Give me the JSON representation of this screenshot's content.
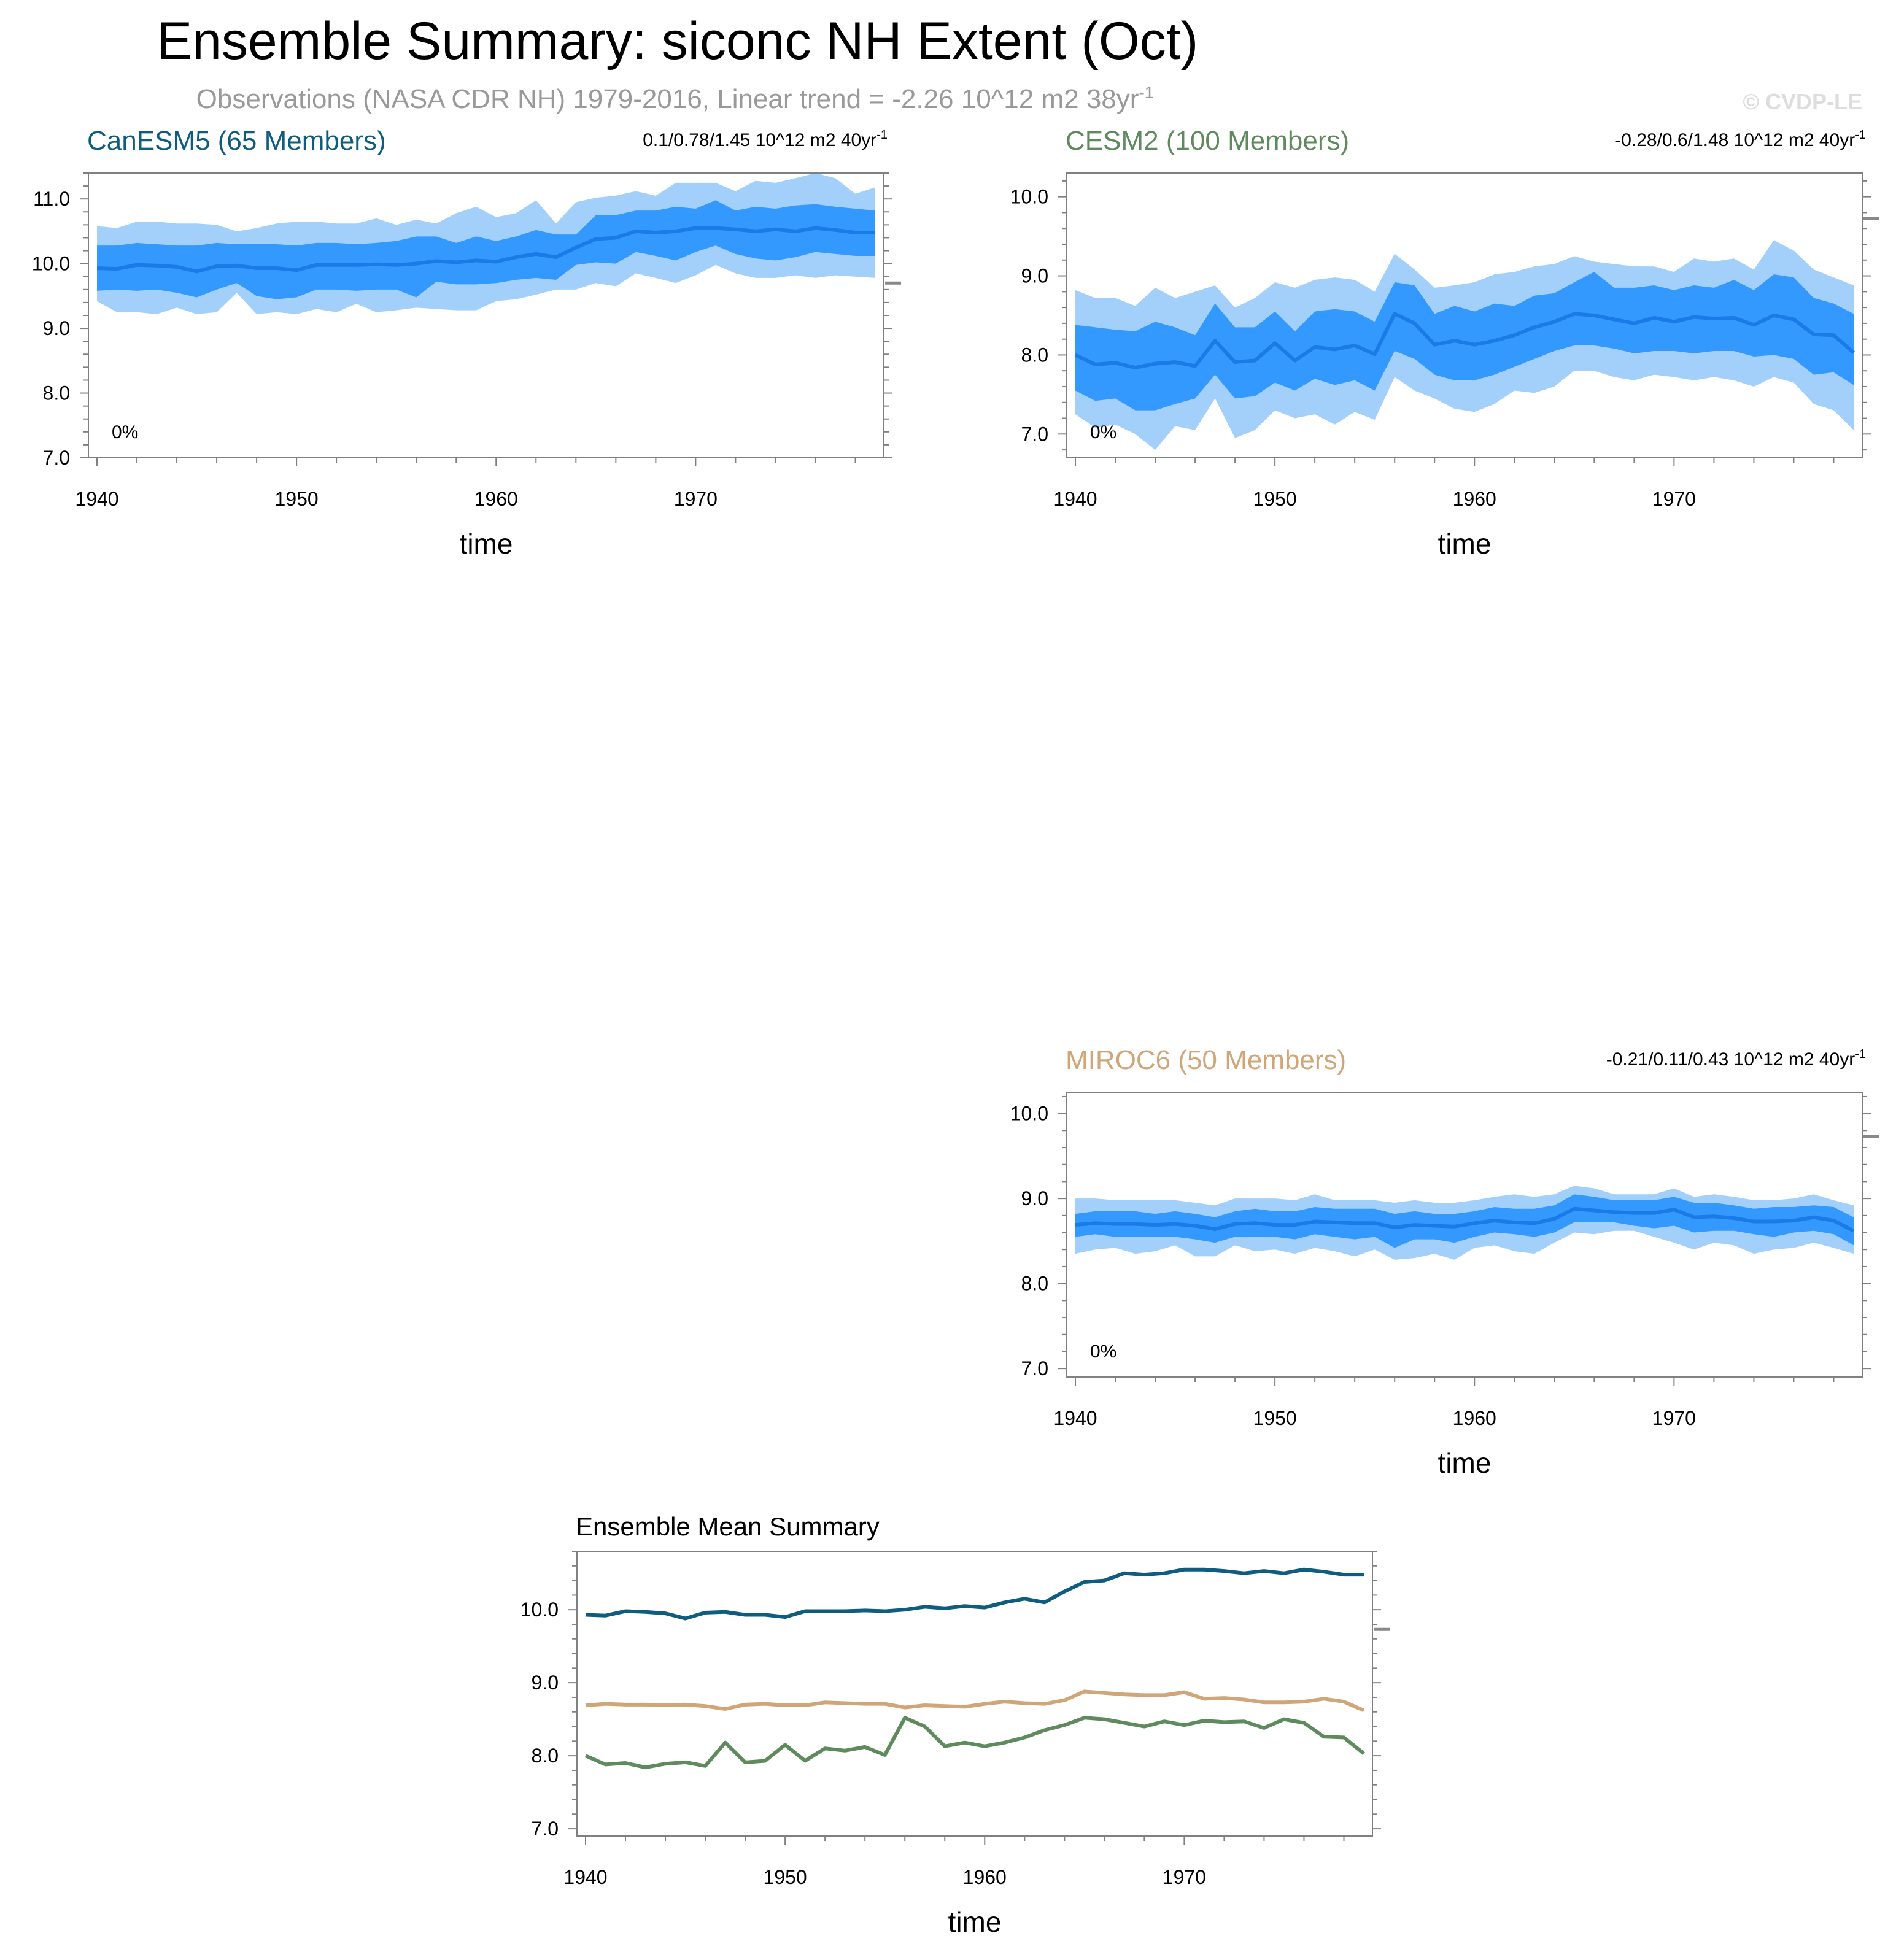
{
  "figure": {
    "title": "Ensemble Summary: siconc NH Extent (Oct)",
    "subtitle": "Observations (NASA CDR NH) 1979-2016, Linear trend = -2.26 10^12 m2 38yr",
    "subtitle_sup": "-1",
    "copyright": "© CVDP-LE"
  },
  "colors": {
    "band_outer": "#a3d0fb",
    "band_inner": "#3399ff",
    "mean_line": "#1a7ae8",
    "obs_marker": "#888888",
    "CanESM5": "#0e5d80",
    "CESM2": "#5e8a5e",
    "MIROC6": "#d0a678"
  },
  "chart_data": [
    {
      "type": "area",
      "title": "CanESM5 (65 Members)",
      "right_title": "0.1/0.78/1.45 10^12 m2 40yr",
      "right_sup": "-1",
      "percent_label": "0%",
      "xlabel": "time",
      "ylabel": "",
      "xlim": [
        1940,
        1979
      ],
      "ylim": [
        7.0,
        11.4
      ],
      "xticks": [
        1940,
        1950,
        1960,
        1970
      ],
      "yticks": [
        7.0,
        8.0,
        9.0,
        10.0,
        11.0
      ],
      "ytick_labels": [
        "7.0",
        "8.0",
        "9.0",
        "10.0",
        "11.0"
      ],
      "obs_marker": 9.7,
      "x": [
        1940,
        1941,
        1942,
        1943,
        1944,
        1945,
        1946,
        1947,
        1948,
        1949,
        1950,
        1951,
        1952,
        1953,
        1954,
        1955,
        1956,
        1957,
        1958,
        1959,
        1960,
        1961,
        1962,
        1963,
        1964,
        1965,
        1966,
        1967,
        1968,
        1969,
        1970,
        1971,
        1972,
        1973,
        1974,
        1975,
        1976,
        1977,
        1978,
        1979
      ],
      "series": [
        {
          "name": "mean",
          "values": [
            9.93,
            9.92,
            9.98,
            9.97,
            9.95,
            9.88,
            9.96,
            9.97,
            9.93,
            9.93,
            9.9,
            9.98,
            9.98,
            9.98,
            9.99,
            9.98,
            10.0,
            10.04,
            10.02,
            10.05,
            10.03,
            10.1,
            10.15,
            10.1,
            10.25,
            10.38,
            10.4,
            10.5,
            10.48,
            10.5,
            10.55,
            10.55,
            10.53,
            10.5,
            10.53,
            10.5,
            10.55,
            10.52,
            10.48,
            10.48
          ]
        },
        {
          "name": "p10",
          "values": [
            9.58,
            9.6,
            9.58,
            9.6,
            9.55,
            9.48,
            9.6,
            9.7,
            9.5,
            9.45,
            9.48,
            9.6,
            9.6,
            9.58,
            9.6,
            9.6,
            9.48,
            9.72,
            9.68,
            9.68,
            9.7,
            9.75,
            9.78,
            9.75,
            9.98,
            10.02,
            10.0,
            10.18,
            10.12,
            10.05,
            10.18,
            10.28,
            10.15,
            10.08,
            10.05,
            10.1,
            10.18,
            10.15,
            10.12,
            10.12
          ]
        },
        {
          "name": "p90",
          "values": [
            10.28,
            10.28,
            10.32,
            10.3,
            10.28,
            10.28,
            10.32,
            10.3,
            10.3,
            10.3,
            10.28,
            10.32,
            10.32,
            10.3,
            10.32,
            10.35,
            10.42,
            10.42,
            10.32,
            10.42,
            10.35,
            10.42,
            10.52,
            10.45,
            10.45,
            10.75,
            10.75,
            10.82,
            10.82,
            10.88,
            10.85,
            10.98,
            10.82,
            10.88,
            10.85,
            10.9,
            10.92,
            10.88,
            10.85,
            10.82
          ]
        },
        {
          "name": "min",
          "values": [
            9.42,
            9.25,
            9.25,
            9.22,
            9.32,
            9.22,
            9.25,
            9.55,
            9.22,
            9.25,
            9.22,
            9.3,
            9.25,
            9.38,
            9.25,
            9.28,
            9.32,
            9.3,
            9.28,
            9.28,
            9.42,
            9.45,
            9.52,
            9.6,
            9.6,
            9.7,
            9.65,
            9.85,
            9.78,
            9.7,
            9.82,
            9.98,
            9.85,
            9.78,
            9.78,
            9.82,
            9.78,
            9.82,
            9.8,
            9.78
          ]
        },
        {
          "name": "max",
          "values": [
            10.58,
            10.55,
            10.65,
            10.65,
            10.62,
            10.62,
            10.6,
            10.5,
            10.55,
            10.62,
            10.65,
            10.65,
            10.62,
            10.62,
            10.7,
            10.6,
            10.68,
            10.62,
            10.78,
            10.88,
            10.72,
            10.78,
            10.98,
            10.62,
            10.95,
            11.02,
            11.05,
            11.12,
            11.05,
            11.25,
            11.25,
            11.25,
            11.12,
            11.28,
            11.25,
            11.32,
            11.4,
            11.32,
            11.08,
            11.18
          ]
        }
      ]
    },
    {
      "type": "area",
      "title": "CESM2 (100 Members)",
      "right_title": "-0.28/0.6/1.48 10^12 m2 40yr",
      "right_sup": "-1",
      "percent_label": "0%",
      "xlabel": "time",
      "ylabel": "",
      "xlim": [
        1940,
        1979
      ],
      "ylim": [
        6.7,
        10.3
      ],
      "xticks": [
        1940,
        1950,
        1960,
        1970
      ],
      "yticks": [
        7.0,
        8.0,
        9.0,
        10.0
      ],
      "ytick_labels": [
        "7.0",
        "8.0",
        "9.0",
        "10.0"
      ],
      "obs_marker": 9.73,
      "x": [
        1940,
        1941,
        1942,
        1943,
        1944,
        1945,
        1946,
        1947,
        1948,
        1949,
        1950,
        1951,
        1952,
        1953,
        1954,
        1955,
        1956,
        1957,
        1958,
        1959,
        1960,
        1961,
        1962,
        1963,
        1964,
        1965,
        1966,
        1967,
        1968,
        1969,
        1970,
        1971,
        1972,
        1973,
        1974,
        1975,
        1976,
        1977,
        1978,
        1979
      ],
      "series": [
        {
          "name": "mean",
          "values": [
            8.0,
            7.88,
            7.9,
            7.84,
            7.89,
            7.91,
            7.86,
            8.18,
            7.91,
            7.93,
            8.15,
            7.93,
            8.1,
            8.07,
            8.12,
            8.01,
            8.52,
            8.4,
            8.13,
            8.18,
            8.13,
            8.18,
            8.25,
            8.35,
            8.42,
            8.52,
            8.5,
            8.45,
            8.4,
            8.47,
            8.42,
            8.48,
            8.46,
            8.47,
            8.38,
            8.5,
            8.45,
            8.26,
            8.25,
            8.03
          ]
        },
        {
          "name": "p10",
          "values": [
            7.55,
            7.42,
            7.45,
            7.3,
            7.3,
            7.38,
            7.45,
            7.75,
            7.45,
            7.48,
            7.65,
            7.55,
            7.7,
            7.62,
            7.68,
            7.55,
            8.05,
            7.95,
            7.75,
            7.68,
            7.68,
            7.75,
            7.85,
            7.95,
            8.05,
            8.12,
            8.12,
            8.08,
            8.02,
            8.05,
            8.05,
            8.02,
            8.05,
            8.05,
            7.98,
            8.0,
            7.95,
            7.75,
            7.78,
            7.62
          ]
        },
        {
          "name": "p90",
          "values": [
            8.38,
            8.35,
            8.32,
            8.3,
            8.42,
            8.35,
            8.25,
            8.65,
            8.35,
            8.35,
            8.55,
            8.3,
            8.55,
            8.58,
            8.55,
            8.42,
            8.92,
            8.88,
            8.52,
            8.62,
            8.55,
            8.65,
            8.62,
            8.75,
            8.78,
            8.92,
            9.05,
            8.85,
            8.85,
            8.88,
            8.82,
            8.88,
            8.85,
            8.95,
            8.82,
            9.02,
            8.98,
            8.72,
            8.65,
            8.52
          ]
        },
        {
          "name": "min",
          "values": [
            7.25,
            7.08,
            7.12,
            7.0,
            6.8,
            7.1,
            7.05,
            7.45,
            6.95,
            7.05,
            7.3,
            7.2,
            7.25,
            7.12,
            7.28,
            7.18,
            7.72,
            7.55,
            7.45,
            7.32,
            7.28,
            7.38,
            7.55,
            7.52,
            7.6,
            7.8,
            7.8,
            7.72,
            7.68,
            7.75,
            7.72,
            7.68,
            7.72,
            7.68,
            7.6,
            7.72,
            7.65,
            7.38,
            7.3,
            7.05
          ]
        },
        {
          "name": "max",
          "values": [
            8.82,
            8.72,
            8.72,
            8.62,
            8.85,
            8.72,
            8.8,
            8.88,
            8.6,
            8.72,
            8.92,
            8.85,
            8.95,
            8.98,
            8.95,
            8.8,
            9.28,
            9.08,
            8.85,
            8.88,
            8.92,
            9.02,
            9.05,
            9.12,
            9.15,
            9.25,
            9.18,
            9.15,
            9.12,
            9.12,
            9.05,
            9.22,
            9.18,
            9.22,
            9.08,
            9.45,
            9.32,
            9.08,
            8.98,
            8.88
          ]
        }
      ]
    },
    {
      "type": "area",
      "title": "MIROC6 (50 Members)",
      "right_title": "-0.21/0.11/0.43 10^12 m2 40yr",
      "right_sup": "-1",
      "percent_label": "0%",
      "xlabel": "time",
      "ylabel": "",
      "xlim": [
        1940,
        1979
      ],
      "ylim": [
        6.9,
        10.25
      ],
      "xticks": [
        1940,
        1950,
        1960,
        1970
      ],
      "yticks": [
        7.0,
        8.0,
        9.0,
        10.0
      ],
      "ytick_labels": [
        "7.0",
        "8.0",
        "9.0",
        "10.0"
      ],
      "obs_marker": 9.73,
      "x": [
        1940,
        1941,
        1942,
        1943,
        1944,
        1945,
        1946,
        1947,
        1948,
        1949,
        1950,
        1951,
        1952,
        1953,
        1954,
        1955,
        1956,
        1957,
        1958,
        1959,
        1960,
        1961,
        1962,
        1963,
        1964,
        1965,
        1966,
        1967,
        1968,
        1969,
        1970,
        1971,
        1972,
        1973,
        1974,
        1975,
        1976,
        1977,
        1978,
        1979
      ],
      "series": [
        {
          "name": "mean",
          "values": [
            8.69,
            8.71,
            8.7,
            8.7,
            8.69,
            8.7,
            8.68,
            8.64,
            8.7,
            8.71,
            8.69,
            8.69,
            8.73,
            8.72,
            8.71,
            8.71,
            8.66,
            8.69,
            8.68,
            8.67,
            8.71,
            8.74,
            8.72,
            8.71,
            8.76,
            8.88,
            8.86,
            8.84,
            8.83,
            8.83,
            8.87,
            8.78,
            8.79,
            8.77,
            8.73,
            8.73,
            8.74,
            8.78,
            8.74,
            8.62
          ]
        },
        {
          "name": "p10",
          "values": [
            8.55,
            8.58,
            8.55,
            8.55,
            8.55,
            8.55,
            8.52,
            8.48,
            8.55,
            8.55,
            8.55,
            8.52,
            8.58,
            8.55,
            8.52,
            8.55,
            8.42,
            8.52,
            8.52,
            8.48,
            8.55,
            8.6,
            8.58,
            8.55,
            8.6,
            8.72,
            8.72,
            8.72,
            8.68,
            8.65,
            8.68,
            8.6,
            8.62,
            8.62,
            8.58,
            8.55,
            8.6,
            8.62,
            8.58,
            8.45
          ]
        },
        {
          "name": "p90",
          "values": [
            8.82,
            8.85,
            8.85,
            8.85,
            8.82,
            8.85,
            8.82,
            8.78,
            8.85,
            8.88,
            8.85,
            8.85,
            8.9,
            8.88,
            8.88,
            8.88,
            8.82,
            8.85,
            8.82,
            8.82,
            8.85,
            8.9,
            8.88,
            8.88,
            8.92,
            9.05,
            9.02,
            8.98,
            8.98,
            8.98,
            9.02,
            8.95,
            8.95,
            8.92,
            8.88,
            8.9,
            8.9,
            8.92,
            8.9,
            8.78
          ]
        },
        {
          "name": "min",
          "values": [
            8.35,
            8.4,
            8.42,
            8.35,
            8.38,
            8.45,
            8.32,
            8.32,
            8.45,
            8.38,
            8.4,
            8.35,
            8.42,
            8.38,
            8.32,
            8.4,
            8.28,
            8.3,
            8.35,
            8.28,
            8.42,
            8.45,
            8.38,
            8.35,
            8.48,
            8.6,
            8.58,
            8.62,
            8.62,
            8.55,
            8.48,
            8.4,
            8.48,
            8.45,
            8.35,
            8.4,
            8.42,
            8.48,
            8.42,
            8.35
          ]
        },
        {
          "name": "max",
          "values": [
            9.0,
            9.0,
            8.98,
            8.98,
            8.98,
            8.98,
            8.95,
            8.92,
            9.0,
            9.0,
            9.0,
            8.98,
            9.05,
            8.98,
            8.98,
            8.98,
            8.95,
            8.98,
            8.95,
            8.95,
            8.98,
            9.02,
            9.05,
            9.02,
            9.05,
            9.15,
            9.12,
            9.05,
            9.05,
            9.05,
            9.12,
            9.02,
            9.05,
            9.02,
            8.98,
            8.98,
            9.0,
            9.05,
            8.98,
            8.92
          ]
        }
      ]
    },
    {
      "type": "line",
      "title": "Ensemble Mean Summary",
      "xlabel": "time",
      "ylabel": "",
      "xlim": [
        1940,
        1979
      ],
      "ylim": [
        6.9,
        10.8
      ],
      "xticks": [
        1940,
        1950,
        1960,
        1970
      ],
      "yticks": [
        7.0,
        8.0,
        9.0,
        10.0
      ],
      "ytick_labels": [
        "7.0",
        "8.0",
        "9.0",
        "10.0"
      ],
      "obs_marker": 9.73,
      "x": [
        1940,
        1941,
        1942,
        1943,
        1944,
        1945,
        1946,
        1947,
        1948,
        1949,
        1950,
        1951,
        1952,
        1953,
        1954,
        1955,
        1956,
        1957,
        1958,
        1959,
        1960,
        1961,
        1962,
        1963,
        1964,
        1965,
        1966,
        1967,
        1968,
        1969,
        1970,
        1971,
        1972,
        1973,
        1974,
        1975,
        1976,
        1977,
        1978,
        1979
      ],
      "series": [
        {
          "name": "CanESM5",
          "values": [
            9.93,
            9.92,
            9.98,
            9.97,
            9.95,
            9.88,
            9.96,
            9.97,
            9.93,
            9.93,
            9.9,
            9.98,
            9.98,
            9.98,
            9.99,
            9.98,
            10.0,
            10.04,
            10.02,
            10.05,
            10.03,
            10.1,
            10.15,
            10.1,
            10.25,
            10.38,
            10.4,
            10.5,
            10.48,
            10.5,
            10.55,
            10.55,
            10.53,
            10.5,
            10.53,
            10.5,
            10.55,
            10.52,
            10.48,
            10.48
          ]
        },
        {
          "name": "MIROC6",
          "values": [
            8.69,
            8.71,
            8.7,
            8.7,
            8.69,
            8.7,
            8.68,
            8.64,
            8.7,
            8.71,
            8.69,
            8.69,
            8.73,
            8.72,
            8.71,
            8.71,
            8.66,
            8.69,
            8.68,
            8.67,
            8.71,
            8.74,
            8.72,
            8.71,
            8.76,
            8.88,
            8.86,
            8.84,
            8.83,
            8.83,
            8.87,
            8.78,
            8.79,
            8.77,
            8.73,
            8.73,
            8.74,
            8.78,
            8.74,
            8.62
          ]
        },
        {
          "name": "CESM2",
          "values": [
            8.0,
            7.88,
            7.9,
            7.84,
            7.89,
            7.91,
            7.86,
            8.18,
            7.91,
            7.93,
            8.15,
            7.93,
            8.1,
            8.07,
            8.12,
            8.01,
            8.52,
            8.4,
            8.13,
            8.18,
            8.13,
            8.18,
            8.25,
            8.35,
            8.42,
            8.52,
            8.5,
            8.45,
            8.4,
            8.47,
            8.42,
            8.48,
            8.46,
            8.47,
            8.38,
            8.5,
            8.45,
            8.26,
            8.25,
            8.03
          ]
        }
      ]
    }
  ]
}
